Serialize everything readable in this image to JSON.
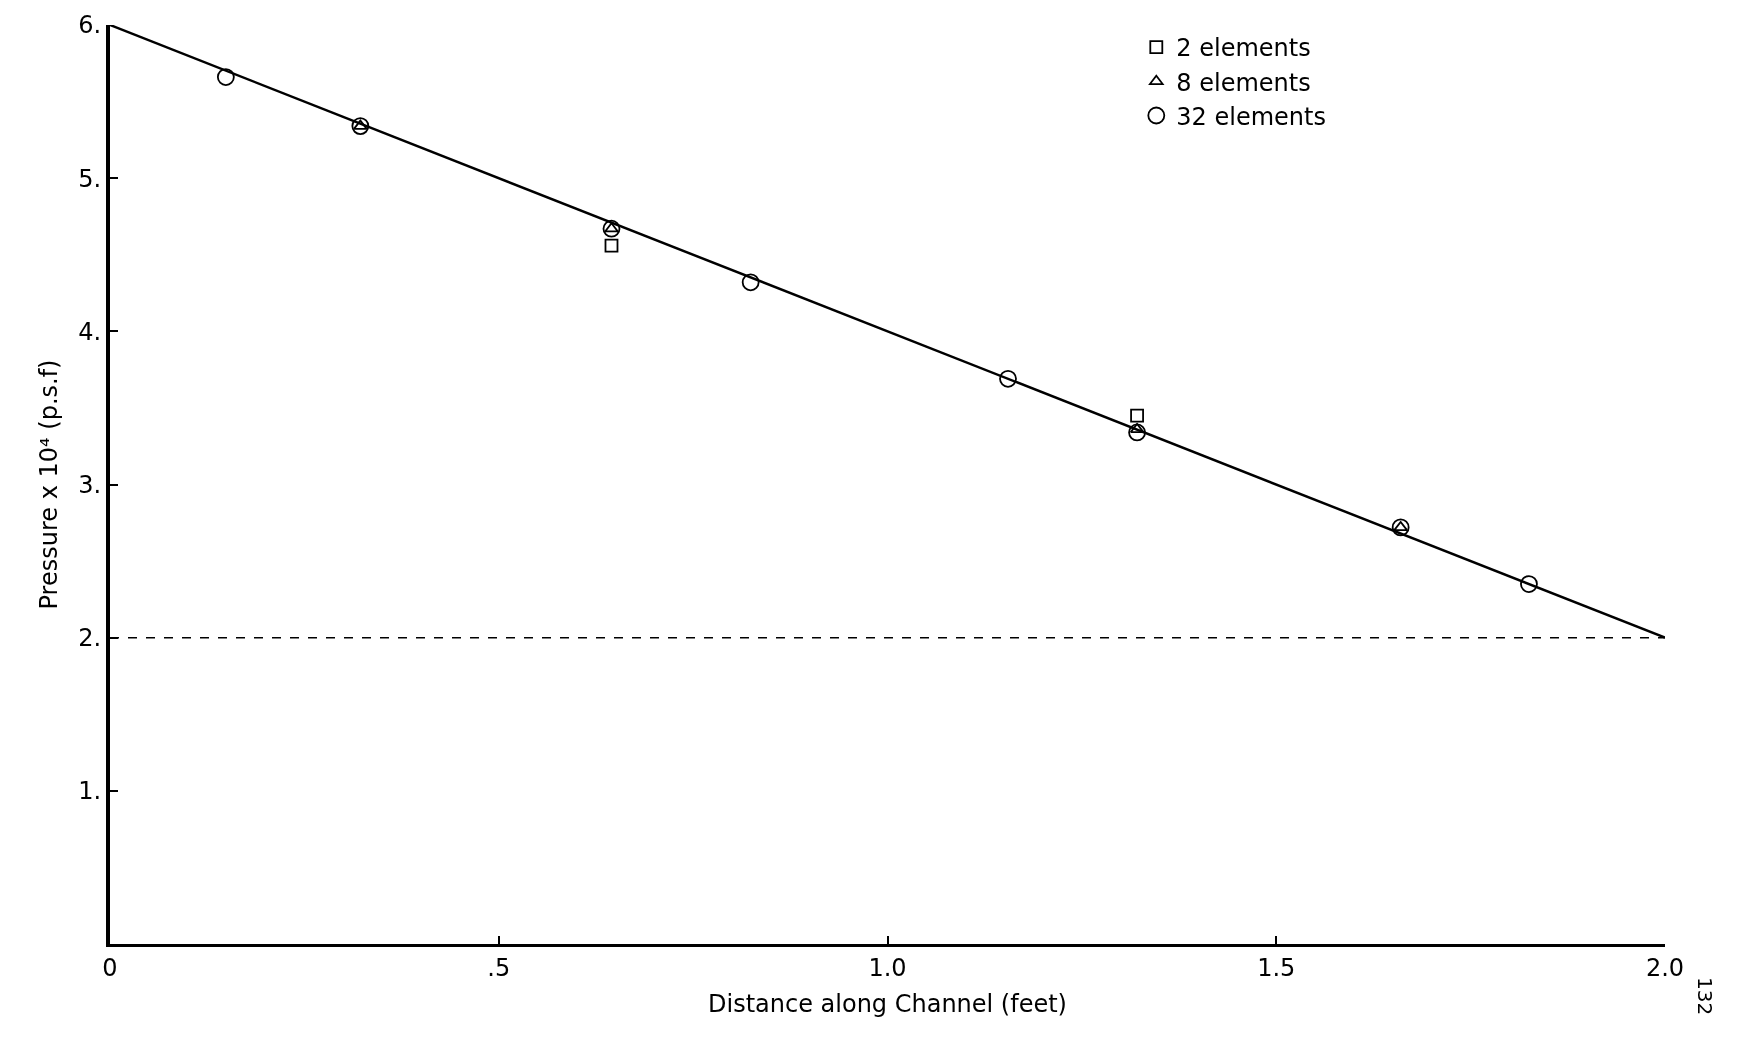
{
  "chart_data": {
    "type": "scatter",
    "xlabel": "Distance along Channel (feet)",
    "ylabel": "Pressure x 10⁴ (p.s.f)",
    "xlim": [
      0,
      2.0
    ],
    "ylim": [
      0,
      6
    ],
    "xticks": [
      0,
      {
        "value": 0.5,
        "label": ".5"
      },
      {
        "value": 1.0,
        "label": "1.0"
      },
      {
        "value": 1.5,
        "label": "1.5"
      },
      {
        "value": 2.0,
        "label": "2.0"
      }
    ],
    "yticks": [
      {
        "value": 1,
        "label": "1."
      },
      {
        "value": 2,
        "label": "2."
      },
      {
        "value": 3,
        "label": "3."
      },
      {
        "value": 4,
        "label": "4."
      },
      {
        "value": 5,
        "label": "5."
      },
      {
        "value": 6,
        "label": "6."
      }
    ],
    "series": [
      {
        "name": "2 elements",
        "color": "#000000",
        "marker": "square",
        "x": [
          0.645,
          1.321
        ],
        "values": [
          4.56,
          3.45
        ]
      },
      {
        "name": "8 elements",
        "color": "#000000",
        "marker": "triangle",
        "x": [
          0.322,
          0.645,
          1.321,
          1.66
        ],
        "values": [
          5.34,
          4.67,
          3.36,
          2.72
        ]
      },
      {
        "name": "32 elements",
        "color": "#000000",
        "marker": "circle",
        "x": [
          0.149,
          0.322,
          0.645,
          0.824,
          1.155,
          1.321,
          1.66,
          1.825
        ],
        "values": [
          5.66,
          5.34,
          4.67,
          4.32,
          3.69,
          3.34,
          2.72,
          2.35
        ]
      },
      {
        "type": "line",
        "color": "#000000",
        "marker": "none",
        "line_style": "solid",
        "x": [
          0,
          2.0
        ],
        "values": [
          6,
          2
        ]
      }
    ],
    "ref_lines": [
      {
        "axis": "y",
        "value": 2,
        "line_style": "dashed",
        "color": "#000000"
      }
    ],
    "annotations": [
      "132"
    ],
    "legend": "top right"
  }
}
